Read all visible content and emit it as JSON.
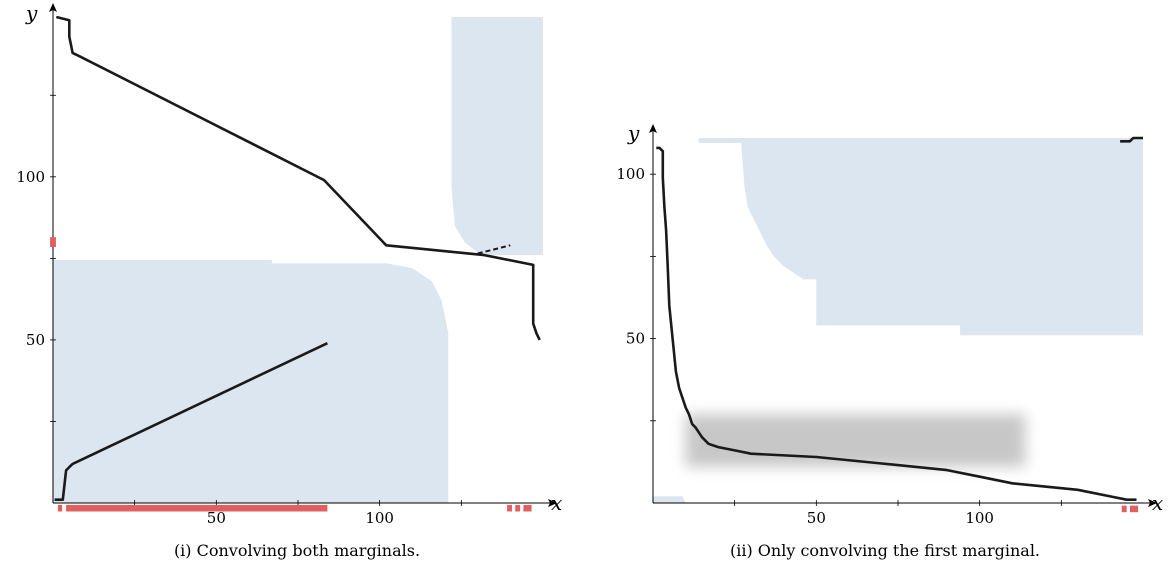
{
  "colors": {
    "region_fill": "#dbe6f1",
    "path_stroke": "#1a1a1a",
    "marker_red": "#e06060",
    "axis": "#000000"
  },
  "panels": [
    {
      "caption": "(i) Convolving both marginals.",
      "x_axis_label": "x",
      "y_axis_label": "y",
      "xlim": [
        0,
        150
      ],
      "ylim": [
        0,
        149
      ],
      "x_ticks": [
        50,
        100
      ],
      "y_ticks": [
        50,
        100
      ],
      "x_minor_ticks": [
        25,
        75,
        125
      ],
      "y_minor_ticks": [
        25,
        75,
        125
      ],
      "regions": [
        {
          "name": "lower-left-region",
          "points": [
            [
              0,
              0
            ],
            [
              0,
              74.5
            ],
            [
              67,
              74.5
            ],
            [
              67,
              73.5
            ],
            [
              102,
              73.5
            ],
            [
              110,
              72
            ],
            [
              116,
              68
            ],
            [
              119,
              62
            ],
            [
              121,
              52
            ],
            [
              121,
              0
            ]
          ]
        },
        {
          "name": "upper-right-region",
          "points": [
            [
              122,
              149
            ],
            [
              122,
              97
            ],
            [
              123,
              85
            ],
            [
              126,
              80
            ],
            [
              131,
              76
            ],
            [
              150,
              76
            ],
            [
              150,
              149
            ]
          ]
        }
      ],
      "paths": [
        {
          "name": "main-path",
          "width": 2.6,
          "points": [
            [
              0.5,
              1
            ],
            [
              3,
              1
            ],
            [
              4,
              10
            ],
            [
              5,
              11
            ],
            [
              6,
              12
            ],
            [
              84,
              49
            ]
          ]
        },
        {
          "name": "top-curve",
          "width": 2.6,
          "points": [
            [
              1,
              149
            ],
            [
              5,
              148
            ],
            [
              5,
              143
            ],
            [
              6,
              138
            ],
            [
              8,
              137
            ],
            [
              83,
              99
            ],
            [
              102,
              79
            ],
            [
              112,
              78
            ],
            [
              132,
              76
            ],
            [
              147,
              73
            ],
            [
              147,
              55
            ],
            [
              148,
              52
            ],
            [
              149,
              50
            ]
          ]
        },
        {
          "name": "tail-dashes",
          "width": 2,
          "dash": "5 3",
          "points": [
            [
              130,
              76.5
            ],
            [
              140,
              79
            ]
          ]
        }
      ],
      "markers": [
        {
          "name": "y-marker",
          "x": -0.9,
          "y": 78.5,
          "w": 1.8,
          "h": 3
        },
        {
          "name": "x-marker-bar",
          "x": 4,
          "y": -2.6,
          "w": 80,
          "h": 2
        },
        {
          "name": "x-marker-a",
          "x": 1.5,
          "y": -2.6,
          "w": 1.3,
          "h": 2
        },
        {
          "name": "x-marker-b",
          "x": 139,
          "y": -2.6,
          "w": 1.5,
          "h": 2
        },
        {
          "name": "x-marker-c",
          "x": 141.5,
          "y": -2.6,
          "w": 1.5,
          "h": 2
        },
        {
          "name": "x-marker-d",
          "x": 144,
          "y": -2.6,
          "w": 2.5,
          "h": 2
        }
      ],
      "blurs": []
    },
    {
      "caption": "(ii) Only convolving the first marginal.",
      "x_axis_label": "x",
      "y_axis_label": "y",
      "xlim": [
        0,
        150
      ],
      "ylim": [
        0,
        111
      ],
      "x_ticks": [
        50,
        100
      ],
      "y_ticks": [
        50,
        100
      ],
      "x_minor_ticks": [
        25,
        75,
        125
      ],
      "y_minor_ticks": [
        25,
        75,
        125
      ],
      "regions": [
        {
          "name": "upper-region",
          "points": [
            [
              14,
              111
            ],
            [
              14,
              109.5
            ],
            [
              27,
              109.5
            ],
            [
              28,
              96
            ],
            [
              29,
              90
            ],
            [
              31,
              86
            ],
            [
              33,
              82
            ],
            [
              35,
              78
            ],
            [
              37,
              75
            ],
            [
              40,
              72
            ],
            [
              43,
              70
            ],
            [
              46,
              68
            ],
            [
              50,
              68
            ],
            [
              50,
              54
            ],
            [
              94,
              54
            ],
            [
              94,
              51
            ],
            [
              150,
              51
            ],
            [
              150,
              111
            ]
          ]
        },
        {
          "name": "origin-region",
          "points": [
            [
              0,
              0
            ],
            [
              0,
              2
            ],
            [
              9,
              2
            ],
            [
              10,
              0
            ]
          ]
        }
      ],
      "paths": [
        {
          "name": "decay-curve",
          "width": 2.6,
          "points": [
            [
              1,
              108
            ],
            [
              2,
              108
            ],
            [
              3,
              107
            ],
            [
              3,
              99
            ],
            [
              3.5,
              90
            ],
            [
              4,
              83
            ],
            [
              4.5,
              72
            ],
            [
              5,
              60
            ],
            [
              6,
              50
            ],
            [
              7,
              40
            ],
            [
              8,
              35
            ],
            [
              9,
              32
            ],
            [
              10,
              29
            ],
            [
              11,
              27
            ],
            [
              12,
              24
            ],
            [
              13,
              23
            ],
            [
              15,
              20
            ],
            [
              17,
              18
            ],
            [
              20,
              17
            ],
            [
              25,
              16
            ],
            [
              30,
              15
            ],
            [
              50,
              14
            ],
            [
              70,
              12
            ],
            [
              90,
              10
            ],
            [
              100,
              8
            ],
            [
              110,
              6
            ],
            [
              120,
              5
            ],
            [
              130,
              4
            ],
            [
              140,
              2
            ],
            [
              145,
              1
            ],
            [
              148,
              1
            ]
          ]
        },
        {
          "name": "top-right-path",
          "width": 2.6,
          "points": [
            [
              143,
              110
            ],
            [
              146,
              110
            ],
            [
              147,
              111
            ],
            [
              150,
              111
            ]
          ]
        }
      ],
      "markers": [
        {
          "name": "x-marker-a",
          "x": 143.5,
          "y": -2.8,
          "w": 1.5,
          "h": 2
        },
        {
          "name": "x-marker-b",
          "x": 146,
          "y": -2.8,
          "w": 2.5,
          "h": 2
        }
      ],
      "blurs": [
        {
          "name": "band-blur",
          "x0": 10,
          "y0": 11,
          "x1": 114,
          "y1": 27
        }
      ]
    }
  ]
}
